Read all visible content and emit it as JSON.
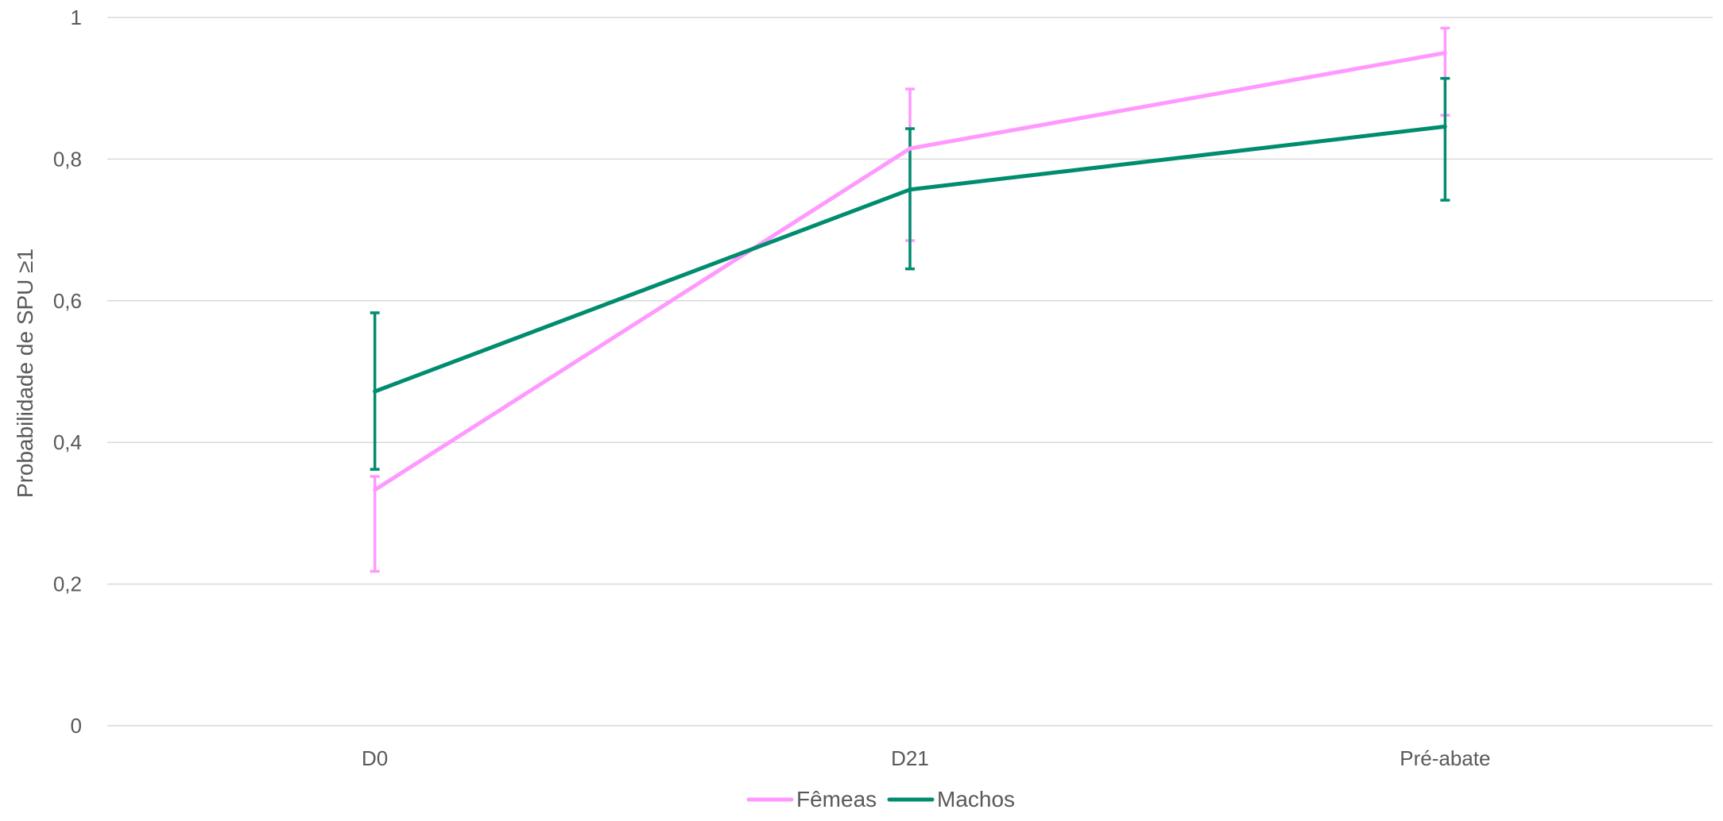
{
  "chart_data": {
    "type": "line",
    "title": "",
    "xlabel": "",
    "ylabel": "Probabilidade de SPU ≥1",
    "categories": [
      "D0",
      "D21",
      "Pré-abate"
    ],
    "ylim": [
      0,
      1
    ],
    "yticks": [
      0,
      0.2,
      0.4,
      0.6,
      0.8,
      1
    ],
    "ytick_labels": [
      "0",
      "0,2",
      "0,4",
      "0,6",
      "0,8",
      "1"
    ],
    "grid": true,
    "legend_position": "bottom",
    "series": [
      {
        "name": "Fêmeas",
        "color": "#ff99ff",
        "values": [
          0.333,
          0.815,
          0.95
        ],
        "error_low": [
          0.218,
          0.685,
          0.862
        ],
        "error_high": [
          0.352,
          0.899,
          0.985
        ]
      },
      {
        "name": "Machos",
        "color": "#008c6e",
        "values": [
          0.472,
          0.757,
          0.846
        ],
        "error_low": [
          0.362,
          0.645,
          0.742
        ],
        "error_high": [
          0.583,
          0.843,
          0.914
        ]
      }
    ]
  }
}
